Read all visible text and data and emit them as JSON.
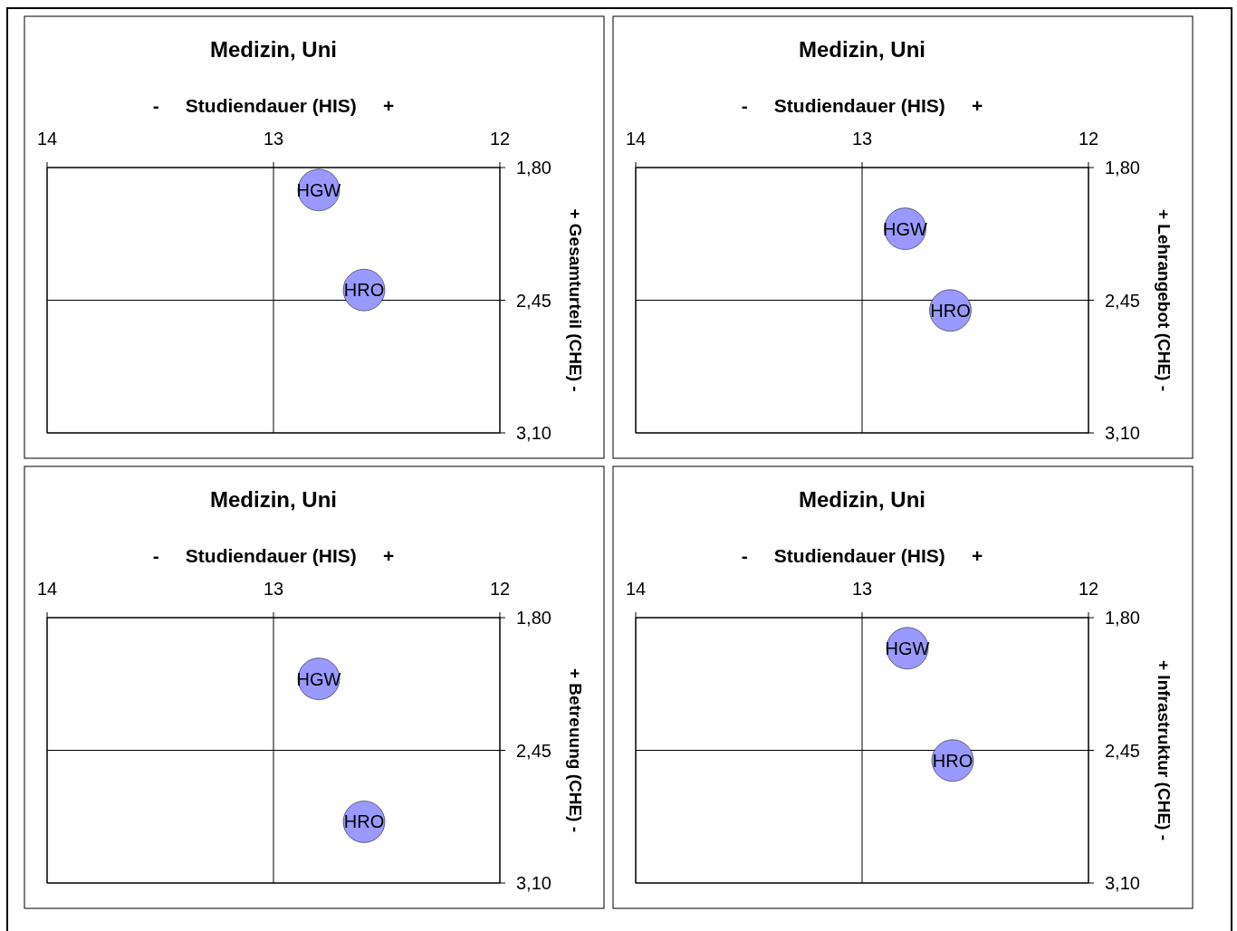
{
  "chart_data": [
    {
      "type": "scatter",
      "title": "Medizin, Uni",
      "xlabel": "-     Studiendauer (HIS)     +",
      "ylabel": "+ Gesamturteil (CHE) -",
      "x": [
        12.8,
        12.6
      ],
      "series": [
        {
          "color": "#9999ff",
          "values": [
            1.91,
            2.4
          ]
        }
      ],
      "annotations": [
        {
          "text": "HGW",
          "x": 12.8,
          "y": 1.91
        },
        {
          "text": "HRO",
          "x": 12.6,
          "y": 2.4
        }
      ],
      "xlim": [
        14,
        12
      ],
      "xticks": [
        14,
        13,
        12
      ],
      "ylim": [
        3.1,
        1.8
      ],
      "yticks": [
        {
          "value": 1.8,
          "label": "1,80"
        },
        {
          "value": 2.45,
          "label": "2,45"
        },
        {
          "value": 3.1,
          "label": "3,10"
        }
      ],
      "grid": true,
      "marker": "circle"
    },
    {
      "type": "scatter",
      "title": "Medizin, Uni",
      "xlabel": "-     Studiendauer (HIS)     +",
      "ylabel": "+ Lehrangebot (CHE) -",
      "x": [
        12.81,
        12.61
      ],
      "series": [
        {
          "color": "#9999ff",
          "values": [
            2.1,
            2.5
          ]
        }
      ],
      "annotations": [
        {
          "text": "HGW",
          "x": 12.81,
          "y": 2.1
        },
        {
          "text": "HRO",
          "x": 12.61,
          "y": 2.5
        }
      ],
      "xlim": [
        14,
        12
      ],
      "xticks": [
        14,
        13,
        12
      ],
      "ylim": [
        3.1,
        1.8
      ],
      "yticks": [
        {
          "value": 1.8,
          "label": "1,80"
        },
        {
          "value": 2.45,
          "label": "2,45"
        },
        {
          "value": 3.1,
          "label": "3,10"
        }
      ],
      "grid": true,
      "marker": "circle"
    },
    {
      "type": "scatter",
      "title": "Medizin, Uni",
      "xlabel": "-     Studiendauer (HIS)     +",
      "ylabel": "+ Betreuung (CHE) -",
      "x": [
        12.8,
        12.6
      ],
      "series": [
        {
          "color": "#9999ff",
          "values": [
            2.1,
            2.8
          ]
        }
      ],
      "annotations": [
        {
          "text": "HGW",
          "x": 12.8,
          "y": 2.1
        },
        {
          "text": "HRO",
          "x": 12.6,
          "y": 2.8
        }
      ],
      "xlim": [
        14,
        12
      ],
      "xticks": [
        14,
        13,
        12
      ],
      "ylim": [
        3.1,
        1.8
      ],
      "yticks": [
        {
          "value": 1.8,
          "label": "1,80"
        },
        {
          "value": 2.45,
          "label": "2,45"
        },
        {
          "value": 3.1,
          "label": "3,10"
        }
      ],
      "grid": true,
      "marker": "circle"
    },
    {
      "type": "scatter",
      "title": "Medizin, Uni",
      "xlabel": "-     Studiendauer (HIS)     +",
      "ylabel": "+ Infrastruktur (CHE) -",
      "x": [
        12.8,
        12.6
      ],
      "series": [
        {
          "color": "#9999ff",
          "values": [
            1.95,
            2.5
          ]
        }
      ],
      "annotations": [
        {
          "text": "HGW",
          "x": 12.8,
          "y": 1.95
        },
        {
          "text": "HRO",
          "x": 12.6,
          "y": 2.5
        }
      ],
      "xlim": [
        14,
        12
      ],
      "xticks": [
        14,
        13,
        12
      ],
      "ylim": [
        3.1,
        1.8
      ],
      "yticks": [
        {
          "value": 1.8,
          "label": "1,80"
        },
        {
          "value": 2.45,
          "label": "2,45"
        },
        {
          "value": 3.1,
          "label": "3,10"
        }
      ],
      "grid": true,
      "marker": "circle"
    }
  ]
}
